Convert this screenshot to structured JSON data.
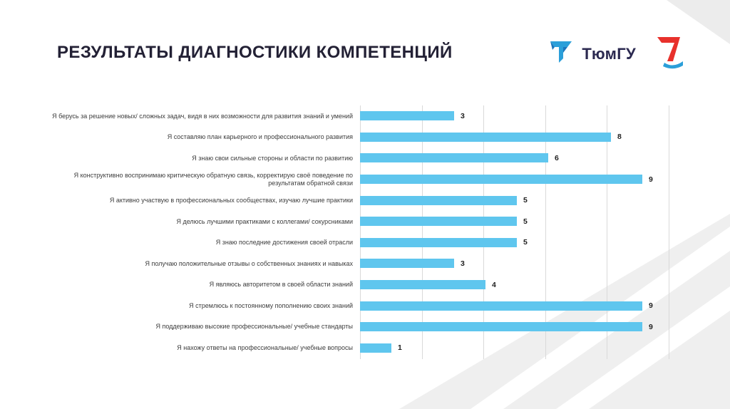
{
  "slide": {
    "title": "РЕЗУЛЬТАТЫ ДИАГНОСТИКИ КОМПЕТЕНЦИЙ"
  },
  "logos": {
    "university_text": "ТюмГУ"
  },
  "colors": {
    "bar": "#5fc6ee",
    "gridline": "#d9d9d9",
    "title": "#232135",
    "logo_blue": "#2b9fd9",
    "logo_dark_blue": "#1b75bb",
    "logo_red": "#e8312c",
    "watermark_gray": "#efefef"
  },
  "chart_data": {
    "type": "bar",
    "orientation": "horizontal",
    "title": "",
    "xlabel": "",
    "ylabel": "",
    "xlim": [
      0,
      10
    ],
    "gridline_positions": [
      0,
      2,
      4,
      6,
      8,
      10
    ],
    "grid": "vertical lines on",
    "legend": "none",
    "categories": [
      "Я берусь за решение новых/ сложных задач, видя в них возможности для развития знаний и умений",
      "Я составляю план карьерного и профессионального развития",
      "Я знаю свои сильные стороны и области по развитию",
      "Я конструктивно воспринимаю критическую обратную связь, корректирую своё поведение по результатам обратной связи",
      "Я активно участвую в профессиональных сообществах, изучаю лучшие практики",
      "Я делюсь лучшими практиками с коллегами/ сокурсниками",
      "Я знаю последние достижения своей отрасли",
      "Я получаю положительные отзывы о собственных знаниях и навыках",
      "Я являюсь авторитетом в своей области знаний",
      "Я стремлюсь к постоянному пополнению своих знаний",
      "Я поддерживаю высокие профессиональные/ учебные стандарты",
      "Я нахожу ответы на профессиональные/ учебные вопросы"
    ],
    "values": [
      3,
      8,
      6,
      9,
      5,
      5,
      5,
      3,
      4,
      9,
      9,
      1
    ]
  }
}
